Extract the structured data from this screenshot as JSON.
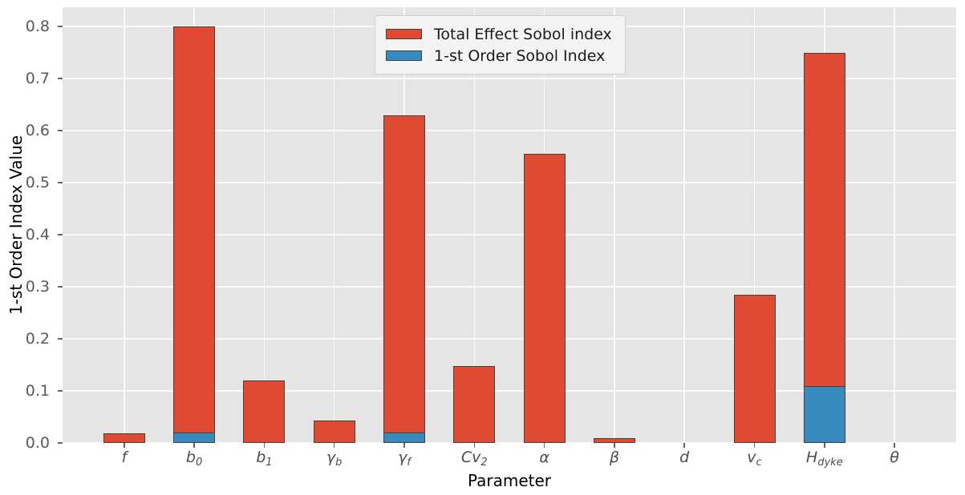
{
  "figure": {
    "background": "#ffffff",
    "plot_background": "#e5e5e5",
    "grid_color": "#fafafa",
    "bar_edge_color": "#46413d",
    "tick_label_color": "#595959",
    "axis_label_color": "#000000"
  },
  "chart_data": {
    "type": "bar",
    "title": "",
    "xlabel": "Parameter",
    "ylabel": "1-st Order Index Value",
    "ylim": [
      0,
      0.837
    ],
    "yticks": [
      "0.0",
      "0.1",
      "0.2",
      "0.3",
      "0.4",
      "0.5",
      "0.6",
      "0.7",
      "0.8"
    ],
    "grid": "on",
    "legend_position": "upper center",
    "bar_style": "overlaid",
    "categories": [
      "f",
      "b0",
      "b1",
      "γb",
      "γf",
      "Cv2",
      "α",
      "β",
      "d",
      "vc",
      "Hdyke",
      "θ"
    ],
    "category_labels": [
      {
        "base": "f",
        "sub": ""
      },
      {
        "base": "b",
        "sub": "0"
      },
      {
        "base": "b",
        "sub": "1"
      },
      {
        "base": "γ",
        "sub": "b"
      },
      {
        "base": "γ",
        "sub": "f"
      },
      {
        "base": "Cv",
        "sub": "2"
      },
      {
        "base": "α",
        "sub": ""
      },
      {
        "base": "β",
        "sub": ""
      },
      {
        "base": "d",
        "sub": ""
      },
      {
        "base": "v",
        "sub": "c"
      },
      {
        "base": "H",
        "sub": "dyke"
      },
      {
        "base": "θ",
        "sub": ""
      }
    ],
    "series": [
      {
        "name": "Total Effect Sobol index",
        "color": "#df4a33",
        "values": [
          0.018,
          0.8,
          0.12,
          0.043,
          0.63,
          0.147,
          0.556,
          0.01,
          0.0,
          0.285,
          0.75,
          0.0
        ]
      },
      {
        "name": "1-st Order Sobol Index",
        "color": "#378bbf",
        "values": [
          0.0,
          0.02,
          0.0,
          0.0,
          0.02,
          0.0,
          0.0,
          0.0,
          0.0,
          0.0,
          0.109,
          0.0
        ]
      }
    ]
  }
}
